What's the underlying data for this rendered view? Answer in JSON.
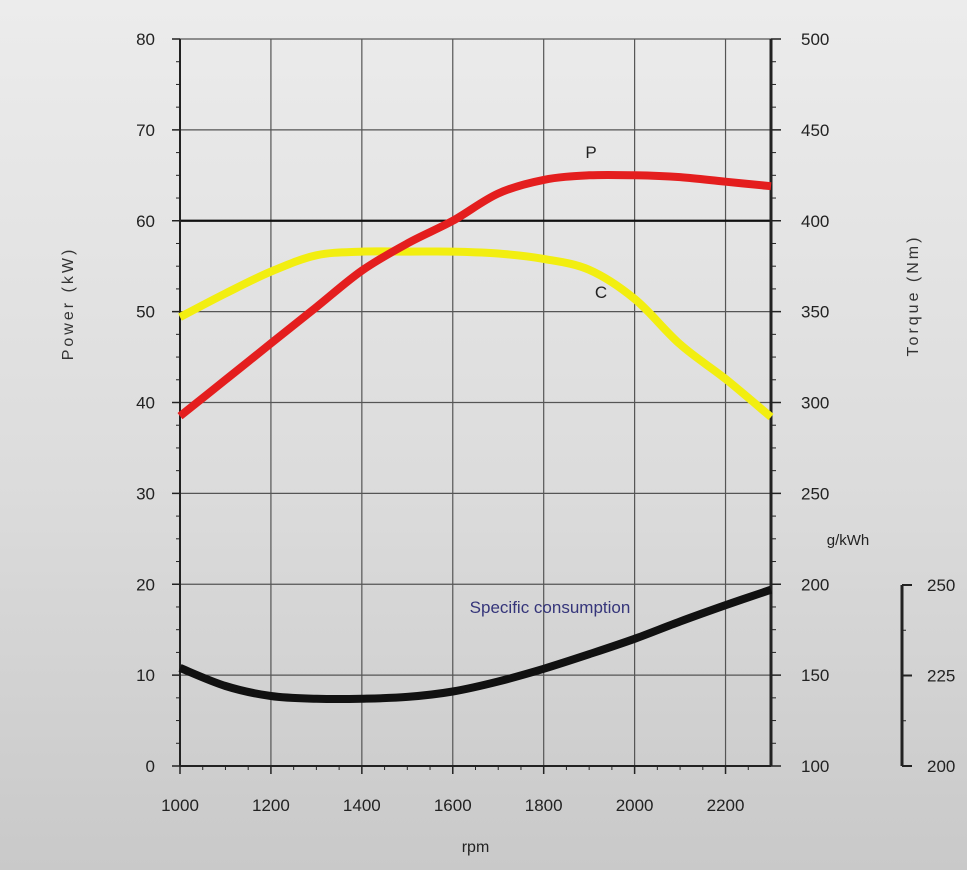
{
  "chart_data": {
    "type": "line",
    "xlabel": "rpm",
    "x_ticks": [
      1000,
      1200,
      1400,
      1600,
      1800,
      2000,
      2200
    ],
    "xlim": [
      1000,
      2300
    ],
    "y_left": {
      "label": "Power (kW)",
      "ticks": [
        0,
        10,
        20,
        30,
        40,
        50,
        60,
        70,
        80
      ],
      "range": [
        0,
        80
      ]
    },
    "y_right": {
      "label": "Torque (Nm)",
      "ticks": [
        100,
        150,
        200,
        250,
        300,
        350,
        400,
        450,
        500
      ],
      "range": [
        100,
        500
      ]
    },
    "y_consumption": {
      "unit": "g/kWh",
      "ticks": [
        200,
        225,
        250
      ],
      "range": [
        200,
        250
      ]
    },
    "grid": true,
    "series": [
      {
        "name": "P",
        "axis": "left",
        "color": "#e41e1e",
        "x": [
          1000,
          1100,
          1200,
          1300,
          1400,
          1500,
          1600,
          1700,
          1800,
          1900,
          2000,
          2100,
          2200,
          2300
        ],
        "values": [
          38.5,
          42.5,
          46.5,
          50.5,
          54.5,
          57.5,
          60.0,
          63.0,
          64.5,
          65.0,
          65.0,
          64.8,
          64.3,
          63.8
        ]
      },
      {
        "name": "C",
        "axis": "right",
        "color": "#f2ee10",
        "x": [
          1000,
          1100,
          1200,
          1300,
          1400,
          1500,
          1600,
          1700,
          1800,
          1900,
          2000,
          2100,
          2200,
          2300
        ],
        "values": [
          347,
          360,
          372,
          381,
          383,
          383,
          383,
          382,
          379,
          373,
          357,
          332,
          313,
          292
        ]
      },
      {
        "name": "Specific consumption",
        "axis": "left",
        "color": "#111111",
        "x": [
          1000,
          1100,
          1200,
          1300,
          1400,
          1500,
          1600,
          1700,
          1800,
          1900,
          2000,
          2100,
          2200,
          2300
        ],
        "values": [
          10.8,
          8.8,
          7.7,
          7.4,
          7.4,
          7.6,
          8.2,
          9.3,
          10.7,
          12.3,
          14.0,
          15.9,
          17.7,
          19.4
        ]
      }
    ],
    "annotations": [
      "P",
      "C",
      "Specific consumption"
    ]
  }
}
